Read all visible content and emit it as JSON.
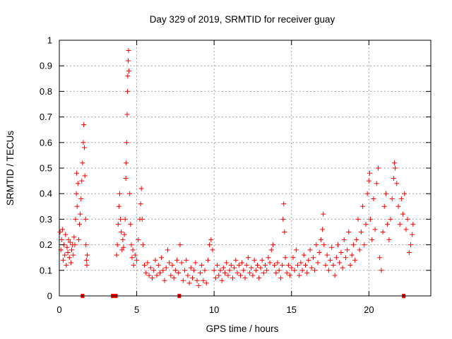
{
  "chart_data": {
    "type": "scatter",
    "title": "Day 329 of 2019, SRMTID for receiver guay",
    "xlabel": "GPS time / hours",
    "ylabel": "SRMTID / TECUs",
    "xlim": [
      0,
      24
    ],
    "ylim": [
      0,
      1
    ],
    "xticks": [
      0,
      5,
      10,
      15,
      20
    ],
    "yticks": [
      0,
      0.1,
      0.2,
      0.3,
      0.4,
      0.5,
      0.6,
      0.7,
      0.8,
      0.9,
      1
    ],
    "grid": true,
    "grid_style": "dotted",
    "marker": "+",
    "marker_color": "#ff0000",
    "baseline_marks_x": [
      1.5,
      3.45,
      3.55,
      3.65,
      7.75,
      22.25
    ],
    "series": [
      {
        "name": "SRMTID",
        "points": [
          [
            0.05,
            0.25
          ],
          [
            0.1,
            0.18
          ],
          [
            0.15,
            0.22
          ],
          [
            0.2,
            0.26
          ],
          [
            0.25,
            0.14
          ],
          [
            0.3,
            0.2
          ],
          [
            0.35,
            0.16
          ],
          [
            0.4,
            0.24
          ],
          [
            0.45,
            0.12
          ],
          [
            0.5,
            0.19
          ],
          [
            0.55,
            0.17
          ],
          [
            0.6,
            0.22
          ],
          [
            0.65,
            0.15
          ],
          [
            0.7,
            0.21
          ],
          [
            0.75,
            0.13
          ],
          [
            0.8,
            0.18
          ],
          [
            0.85,
            0.2
          ],
          [
            0.9,
            0.16
          ],
          [
            0.95,
            0.23
          ],
          [
            1.0,
            0.2
          ],
          [
            1.05,
            0.3
          ],
          [
            1.1,
            0.4
          ],
          [
            1.12,
            0.48
          ],
          [
            1.15,
            0.35
          ],
          [
            1.2,
            0.44
          ],
          [
            1.25,
            0.22
          ],
          [
            1.3,
            0.28
          ],
          [
            1.35,
            0.32
          ],
          [
            1.4,
            0.38
          ],
          [
            1.45,
            0.45
          ],
          [
            1.5,
            0.52
          ],
          [
            1.55,
            0.6
          ],
          [
            1.58,
            0.67
          ],
          [
            1.62,
            0.58
          ],
          [
            1.65,
            0.47
          ],
          [
            1.7,
            0.3
          ],
          [
            1.72,
            0.2
          ],
          [
            1.75,
            0.14
          ],
          [
            1.78,
            0.12
          ],
          [
            1.8,
            0.16
          ],
          [
            3.7,
            0.16
          ],
          [
            3.75,
            0.2
          ],
          [
            3.8,
            0.28
          ],
          [
            3.85,
            0.35
          ],
          [
            3.9,
            0.4
          ],
          [
            3.95,
            0.3
          ],
          [
            4.0,
            0.25
          ],
          [
            4.05,
            0.18
          ],
          [
            4.1,
            0.22
          ],
          [
            4.15,
            0.19
          ],
          [
            4.2,
            0.24
          ],
          [
            4.25,
            0.3
          ],
          [
            4.3,
            0.46
          ],
          [
            4.32,
            0.52
          ],
          [
            4.35,
            0.6
          ],
          [
            4.38,
            0.71
          ],
          [
            4.4,
            0.8
          ],
          [
            4.42,
            0.86
          ],
          [
            4.45,
            0.92
          ],
          [
            4.47,
            0.96
          ],
          [
            4.5,
            0.88
          ],
          [
            4.55,
            0.4
          ],
          [
            4.6,
            0.28
          ],
          [
            4.65,
            0.2
          ],
          [
            4.7,
            0.15
          ],
          [
            4.75,
            0.18
          ],
          [
            4.8,
            0.12
          ],
          [
            4.9,
            0.16
          ],
          [
            5.0,
            0.14
          ],
          [
            5.1,
            0.22
          ],
          [
            5.2,
            0.3
          ],
          [
            5.25,
            0.36
          ],
          [
            5.3,
            0.42
          ],
          [
            5.35,
            0.3
          ],
          [
            5.4,
            0.2
          ],
          [
            5.5,
            0.12
          ],
          [
            5.6,
            0.09
          ],
          [
            5.7,
            0.13
          ],
          [
            5.8,
            0.08
          ],
          [
            5.9,
            0.11
          ],
          [
            6.0,
            0.07
          ],
          [
            6.1,
            0.1
          ],
          [
            6.2,
            0.14
          ],
          [
            6.3,
            0.08
          ],
          [
            6.4,
            0.12
          ],
          [
            6.5,
            0.09
          ],
          [
            6.6,
            0.15
          ],
          [
            6.7,
            0.1
          ],
          [
            6.8,
            0.06
          ],
          [
            6.9,
            0.11
          ],
          [
            7.0,
            0.18
          ],
          [
            7.1,
            0.13
          ],
          [
            7.2,
            0.08
          ],
          [
            7.3,
            0.12
          ],
          [
            7.4,
            0.07
          ],
          [
            7.5,
            0.1
          ],
          [
            7.6,
            0.14
          ],
          [
            7.7,
            0.09
          ],
          [
            7.8,
            0.2
          ],
          [
            7.9,
            0.13
          ],
          [
            8.0,
            0.06
          ],
          [
            8.1,
            0.1
          ],
          [
            8.2,
            0.14
          ],
          [
            8.3,
            0.08
          ],
          [
            8.4,
            0.05
          ],
          [
            8.5,
            0.11
          ],
          [
            8.6,
            0.07
          ],
          [
            8.7,
            0.1
          ],
          [
            8.8,
            0.13
          ],
          [
            8.9,
            0.06
          ],
          [
            9.0,
            0.04
          ],
          [
            9.1,
            0.09
          ],
          [
            9.2,
            0.12
          ],
          [
            9.3,
            0.06
          ],
          [
            9.4,
            0.1
          ],
          [
            9.5,
            0.05
          ],
          [
            9.6,
            0.14
          ],
          [
            9.7,
            0.2
          ],
          [
            9.8,
            0.22
          ],
          [
            9.9,
            0.18
          ],
          [
            10.0,
            0.1
          ],
          [
            10.1,
            0.07
          ],
          [
            10.2,
            0.12
          ],
          [
            10.3,
            0.08
          ],
          [
            10.4,
            0.1
          ],
          [
            10.5,
            0.06
          ],
          [
            10.6,
            0.11
          ],
          [
            10.7,
            0.09
          ],
          [
            10.8,
            0.13
          ],
          [
            10.9,
            0.08
          ],
          [
            11.0,
            0.1
          ],
          [
            11.1,
            0.12
          ],
          [
            11.2,
            0.07
          ],
          [
            11.3,
            0.11
          ],
          [
            11.4,
            0.14
          ],
          [
            11.5,
            0.09
          ],
          [
            11.6,
            0.12
          ],
          [
            11.7,
            0.08
          ],
          [
            11.8,
            0.13
          ],
          [
            11.9,
            0.1
          ],
          [
            12.0,
            0.07
          ],
          [
            12.1,
            0.12
          ],
          [
            12.2,
            0.15
          ],
          [
            12.3,
            0.09
          ],
          [
            12.4,
            0.11
          ],
          [
            12.5,
            0.08
          ],
          [
            12.6,
            0.14
          ],
          [
            12.7,
            0.1
          ],
          [
            12.8,
            0.12
          ],
          [
            12.9,
            0.07
          ],
          [
            13.0,
            0.11
          ],
          [
            13.1,
            0.14
          ],
          [
            13.2,
            0.09
          ],
          [
            13.3,
            0.12
          ],
          [
            13.4,
            0.1
          ],
          [
            13.5,
            0.15
          ],
          [
            13.6,
            0.13
          ],
          [
            13.7,
            0.18
          ],
          [
            13.8,
            0.2
          ],
          [
            13.9,
            0.12
          ],
          [
            14.0,
            0.09
          ],
          [
            14.1,
            0.13
          ],
          [
            14.2,
            0.1
          ],
          [
            14.3,
            0.07
          ],
          [
            14.4,
            0.12
          ],
          [
            14.45,
            0.3
          ],
          [
            14.5,
            0.36
          ],
          [
            14.55,
            0.25
          ],
          [
            14.6,
            0.15
          ],
          [
            14.7,
            0.09
          ],
          [
            14.8,
            0.12
          ],
          [
            14.9,
            0.08
          ],
          [
            15.0,
            0.11
          ],
          [
            15.1,
            0.15
          ],
          [
            15.2,
            0.1
          ],
          [
            15.3,
            0.18
          ],
          [
            15.4,
            0.12
          ],
          [
            15.5,
            0.08
          ],
          [
            15.6,
            0.13
          ],
          [
            15.7,
            0.1
          ],
          [
            15.8,
            0.16
          ],
          [
            15.9,
            0.12
          ],
          [
            16.0,
            0.09
          ],
          [
            16.1,
            0.14
          ],
          [
            16.2,
            0.18
          ],
          [
            16.3,
            0.11
          ],
          [
            16.4,
            0.15
          ],
          [
            16.5,
            0.1
          ],
          [
            16.6,
            0.2
          ],
          [
            16.7,
            0.13
          ],
          [
            16.8,
            0.17
          ],
          [
            16.9,
            0.22
          ],
          [
            17.0,
            0.26
          ],
          [
            17.05,
            0.32
          ],
          [
            17.1,
            0.2
          ],
          [
            17.2,
            0.12
          ],
          [
            17.3,
            0.16
          ],
          [
            17.4,
            0.1
          ],
          [
            17.5,
            0.14
          ],
          [
            17.6,
            0.19
          ],
          [
            17.7,
            0.12
          ],
          [
            17.8,
            0.08
          ],
          [
            17.9,
            0.15
          ],
          [
            18.0,
            0.2
          ],
          [
            18.1,
            0.13
          ],
          [
            18.2,
            0.17
          ],
          [
            18.3,
            0.11
          ],
          [
            18.4,
            0.22
          ],
          [
            18.5,
            0.15
          ],
          [
            18.6,
            0.18
          ],
          [
            18.7,
            0.25
          ],
          [
            18.8,
            0.12
          ],
          [
            18.9,
            0.16
          ],
          [
            19.0,
            0.2
          ],
          [
            19.1,
            0.14
          ],
          [
            19.2,
            0.22
          ],
          [
            19.3,
            0.3
          ],
          [
            19.4,
            0.18
          ],
          [
            19.5,
            0.25
          ],
          [
            19.6,
            0.35
          ],
          [
            19.7,
            0.2
          ],
          [
            19.8,
            0.28
          ],
          [
            19.9,
            0.4
          ],
          [
            20.0,
            0.45
          ],
          [
            20.05,
            0.48
          ],
          [
            20.1,
            0.3
          ],
          [
            20.2,
            0.22
          ],
          [
            20.3,
            0.38
          ],
          [
            20.4,
            0.26
          ],
          [
            20.5,
            0.44
          ],
          [
            20.6,
            0.5
          ],
          [
            20.7,
            0.15
          ],
          [
            20.8,
            0.1
          ],
          [
            20.9,
            0.25
          ],
          [
            21.0,
            0.35
          ],
          [
            21.1,
            0.4
          ],
          [
            21.2,
            0.28
          ],
          [
            21.3,
            0.22
          ],
          [
            21.4,
            0.3
          ],
          [
            21.5,
            0.38
          ],
          [
            21.6,
            0.46
          ],
          [
            21.65,
            0.52
          ],
          [
            21.7,
            0.5
          ],
          [
            21.8,
            0.44
          ],
          [
            21.9,
            0.35
          ],
          [
            22.0,
            0.28
          ],
          [
            22.1,
            0.38
          ],
          [
            22.2,
            0.32
          ],
          [
            22.3,
            0.4
          ],
          [
            22.4,
            0.26
          ],
          [
            22.5,
            0.3
          ],
          [
            22.6,
            0.17
          ],
          [
            22.7,
            0.2
          ],
          [
            22.8,
            0.24
          ],
          [
            22.85,
            0.28
          ]
        ]
      }
    ]
  }
}
